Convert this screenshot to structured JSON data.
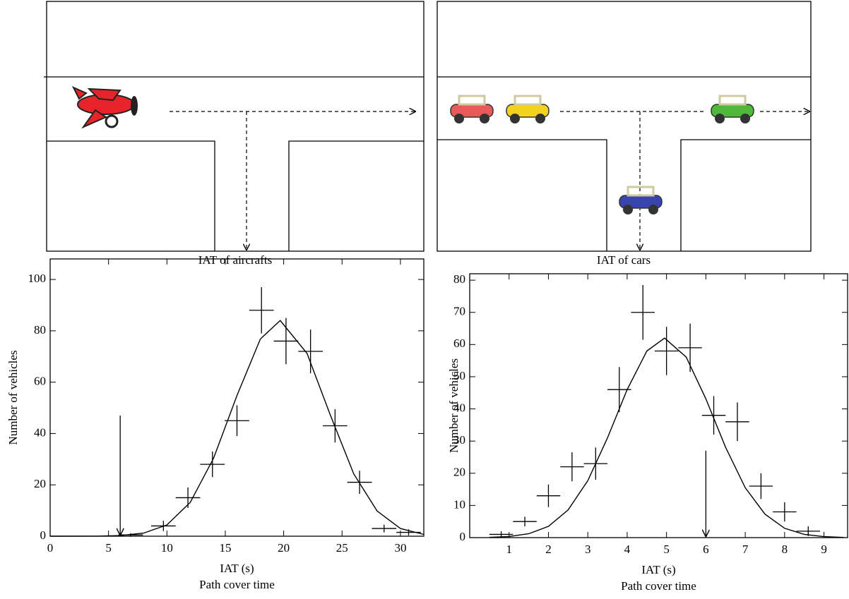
{
  "diagrams": [
    {
      "label": "IAT of aircrafts"
    },
    {
      "label": "IAT of cars"
    }
  ],
  "chart_data": [
    {
      "type": "errorbar",
      "ylabel": "Number of vehicles",
      "xlabel": "IAT (s)",
      "caption": "Path cover time",
      "xlim": [
        0,
        32
      ],
      "ylim": [
        0,
        108
      ],
      "xticks": [
        0,
        5,
        10,
        15,
        20,
        25,
        30
      ],
      "yticks": [
        0,
        20,
        40,
        60,
        80,
        100
      ],
      "color": "#000000",
      "x": [
        6.9,
        9.7,
        11.8,
        13.9,
        16,
        18.1,
        20.2,
        22.3,
        24.4,
        26.5,
        28.6,
        30.7
      ],
      "values": [
        0.5,
        4,
        15,
        28,
        45,
        88,
        76,
        72,
        43,
        21,
        3,
        1.5
      ],
      "yerr": [
        0.7,
        2,
        4,
        5,
        6,
        9,
        9,
        8.5,
        6.5,
        4.5,
        1.5,
        1.2
      ],
      "xerr": 1.05,
      "fit": {
        "x": [
          0,
          4,
          6,
          8,
          10,
          12,
          14,
          16,
          18,
          19.7,
          22,
          24,
          26,
          28,
          30,
          32
        ],
        "values": [
          0,
          0.04,
          0.24,
          1.2,
          4.4,
          13.2,
          30.4,
          54.8,
          76.8,
          84,
          71.2,
          47.1,
          24.3,
          9.8,
          3,
          0.7
        ]
      },
      "arrow": {
        "x": 6,
        "y": 47
      }
    },
    {
      "type": "errorbar",
      "ylabel": "Number of vehicles",
      "xlabel": "IAT (s)",
      "caption": "Path cover time",
      "xlim": [
        0,
        9.6
      ],
      "ylim": [
        0,
        82
      ],
      "xticks": [
        1,
        2,
        3,
        4,
        5,
        6,
        7,
        8,
        9
      ],
      "yticks": [
        0,
        10,
        20,
        30,
        40,
        50,
        60,
        70,
        80
      ],
      "color": "#000000",
      "x": [
        0.8,
        1.4,
        2.0,
        2.6,
        3.2,
        3.8,
        4.4,
        5.0,
        5.6,
        6.2,
        6.8,
        7.4,
        8.0,
        8.6
      ],
      "values": [
        1,
        5,
        13,
        22,
        23,
        46,
        70,
        58,
        59,
        38,
        36,
        16,
        8,
        2
      ],
      "yerr": [
        1,
        1.5,
        3.5,
        4.5,
        5,
        7,
        8.5,
        7.5,
        7.5,
        6,
        6,
        4,
        3,
        1.5
      ],
      "xerr": 0.3,
      "fit": {
        "x": [
          0.5,
          1,
          1.5,
          2,
          2.5,
          3,
          3.5,
          4,
          4.5,
          4.95,
          5.5,
          6,
          6.5,
          7,
          7.5,
          8,
          8.5,
          9,
          9.5
        ],
        "values": [
          0.09,
          0.36,
          1.2,
          3.5,
          8.6,
          17.7,
          31,
          46,
          58,
          62,
          56.1,
          43.1,
          28.1,
          15.5,
          7.3,
          2.9,
          1,
          0.3,
          0.07
        ]
      },
      "arrow": {
        "x": 6,
        "y": 27
      }
    }
  ]
}
